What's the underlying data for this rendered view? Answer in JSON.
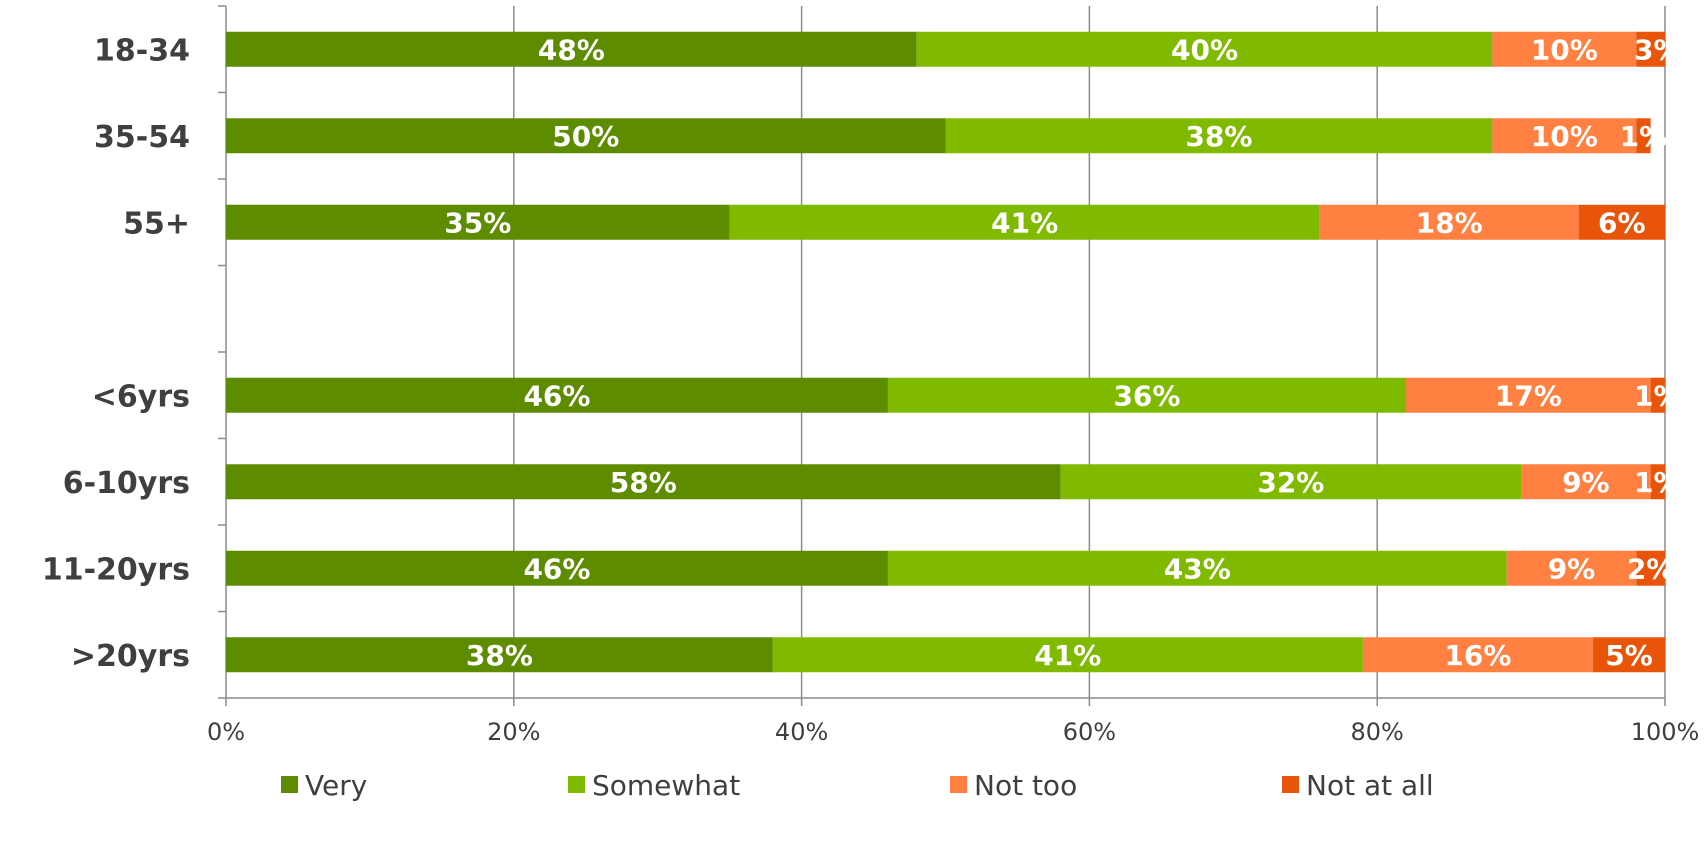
{
  "chart_data": {
    "type": "bar",
    "orientation": "horizontal",
    "stacked": true,
    "categories": [
      "18-34",
      "35-54",
      "55+",
      "",
      "<6yrs",
      "6-10yrs",
      "11-20yrs",
      ">20yrs"
    ],
    "series": [
      {
        "name": "Very",
        "color": "#5e8c00",
        "values": [
          48,
          50,
          35,
          null,
          46,
          58,
          46,
          38
        ]
      },
      {
        "name": "Somewhat",
        "color": "#7fba00",
        "values": [
          40,
          38,
          41,
          null,
          36,
          32,
          43,
          41
        ]
      },
      {
        "name": "Not too",
        "color": "#ff8040",
        "values": [
          10,
          10,
          18,
          null,
          17,
          9,
          9,
          16
        ]
      },
      {
        "name": "Not at all",
        "color": "#e8550a",
        "values": [
          3,
          1,
          6,
          null,
          1,
          1,
          2,
          5
        ]
      }
    ],
    "x_ticks": [
      "0%",
      "20%",
      "40%",
      "60%",
      "80%",
      "100%"
    ],
    "xlim": [
      0,
      100
    ],
    "value_suffix": "%",
    "grid": true,
    "legend_position": "bottom",
    "title": "",
    "xlabel": "",
    "ylabel": ""
  }
}
